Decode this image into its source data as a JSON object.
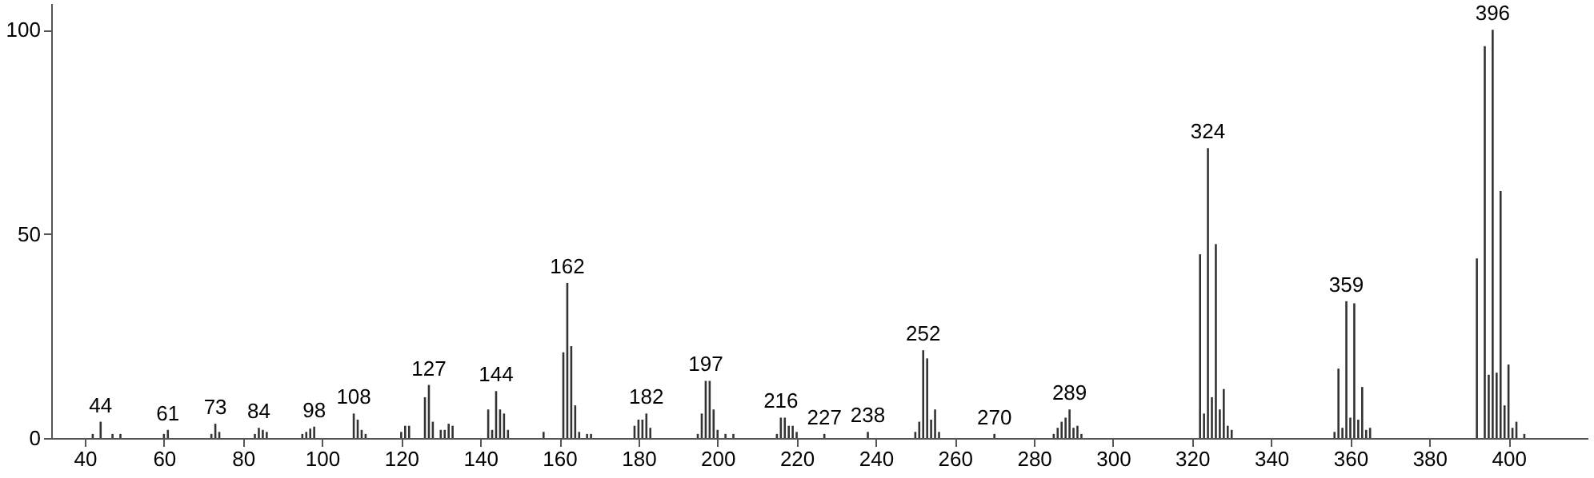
{
  "chart_data": {
    "type": "bar",
    "color": "#333333",
    "x": [
      42,
      44,
      47,
      49,
      60,
      61,
      72,
      73,
      74,
      83,
      84,
      85,
      86,
      95,
      96,
      97,
      98,
      108,
      109,
      110,
      111,
      120,
      121,
      122,
      126,
      127,
      128,
      130,
      131,
      132,
      133,
      142,
      143,
      144,
      145,
      146,
      147,
      156,
      161,
      162,
      163,
      164,
      165,
      167,
      168,
      179,
      180,
      181,
      182,
      183,
      195,
      196,
      197,
      198,
      199,
      200,
      202,
      204,
      215,
      216,
      217,
      218,
      219,
      220,
      227,
      238,
      250,
      251,
      252,
      253,
      254,
      255,
      256,
      270,
      285,
      286,
      287,
      288,
      289,
      290,
      291,
      292,
      322,
      323,
      324,
      325,
      326,
      327,
      328,
      329,
      330,
      356,
      357,
      358,
      359,
      360,
      361,
      362,
      363,
      364,
      365,
      392,
      394,
      395,
      396,
      397,
      398,
      399,
      400,
      401,
      402,
      404
    ],
    "values": [
      1,
      4,
      1,
      1,
      1,
      2,
      1,
      3.5,
      1.5,
      1,
      2.5,
      2,
      1.5,
      1,
      1.5,
      2.3,
      2.8,
      6,
      4.5,
      2,
      1,
      1.5,
      3,
      3,
      10,
      13,
      4,
      2,
      2,
      3.5,
      3,
      7,
      2,
      11.5,
      7,
      6,
      2,
      1.5,
      21,
      38,
      22.5,
      8,
      1.5,
      1,
      1,
      3,
      4.5,
      4.5,
      6,
      2.5,
      1,
      6,
      14,
      14,
      7,
      2,
      1,
      1,
      1,
      5,
      5,
      3,
      3,
      1.5,
      1,
      1.5,
      1.5,
      4,
      21.5,
      19.5,
      4.5,
      7,
      1.5,
      1,
      1,
      2.5,
      4,
      5,
      7,
      2.5,
      3,
      1,
      45,
      6,
      71,
      10,
      47.5,
      7,
      12,
      3,
      2,
      1.5,
      17,
      2.5,
      33.5,
      5,
      33,
      4.5,
      12.5,
      2,
      2.5,
      44,
      96,
      15.5,
      100,
      16,
      60.5,
      8,
      18,
      2.5,
      4,
      1
    ],
    "annotations": [
      {
        "text": "44",
        "x": 44,
        "y": 4
      },
      {
        "text": "61",
        "x": 61,
        "y": 2
      },
      {
        "text": "73",
        "x": 73,
        "y": 3.5
      },
      {
        "text": "84",
        "x": 84,
        "y": 2.5
      },
      {
        "text": "98",
        "x": 98,
        "y": 2.8
      },
      {
        "text": "108",
        "x": 108,
        "y": 6
      },
      {
        "text": "127",
        "x": 127,
        "y": 13
      },
      {
        "text": "144",
        "x": 144,
        "y": 11.5
      },
      {
        "text": "162",
        "x": 162,
        "y": 38
      },
      {
        "text": "182",
        "x": 182,
        "y": 6
      },
      {
        "text": "197",
        "x": 197,
        "y": 14
      },
      {
        "text": "216",
        "x": 216,
        "y": 5
      },
      {
        "text": "227",
        "x": 227,
        "y": 1
      },
      {
        "text": "238",
        "x": 238,
        "y": 1.5
      },
      {
        "text": "252",
        "x": 252,
        "y": 21.5
      },
      {
        "text": "270",
        "x": 270,
        "y": 1
      },
      {
        "text": "289",
        "x": 289,
        "y": 7
      },
      {
        "text": "324",
        "x": 324,
        "y": 71
      },
      {
        "text": "359",
        "x": 359,
        "y": 33.5
      },
      {
        "text": "396",
        "x": 396,
        "y": 100
      }
    ],
    "xlim": [
      31.5,
      420
    ],
    "xticks": [
      40,
      60,
      80,
      100,
      120,
      140,
      160,
      180,
      200,
      220,
      240,
      260,
      280,
      300,
      320,
      340,
      360,
      380,
      400
    ],
    "ylim": [
      0,
      106.5
    ],
    "yticks": [
      0,
      50,
      100
    ],
    "grid": false
  }
}
